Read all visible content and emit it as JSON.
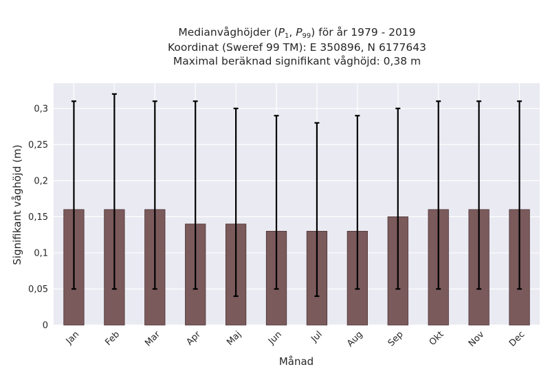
{
  "chart_data": {
    "type": "bar",
    "title_lines": [
      "Medianvåghöjder (P1, P99) för år 1979 - 2019",
      "Koordinat (Sweref 99 TM): E 350896, N 6177643",
      "Maximal beräknad signifikant våghöjd: 0,38 m"
    ],
    "xlabel": "Månad",
    "ylabel": "Signifikant våghöjd (m)",
    "categories": [
      "Jan",
      "Feb",
      "Mar",
      "Apr",
      "Maj",
      "Jun",
      "Jul",
      "Aug",
      "Sep",
      "Okt",
      "Nov",
      "Dec"
    ],
    "series": [
      {
        "values": [
          0.16,
          0.16,
          0.16,
          0.14,
          0.14,
          0.13,
          0.13,
          0.13,
          0.15,
          0.16,
          0.16,
          0.16
        ],
        "error_low": [
          0.05,
          0.05,
          0.05,
          0.05,
          0.04,
          0.05,
          0.04,
          0.05,
          0.05,
          0.05,
          0.05,
          0.05
        ],
        "error_high": [
          0.31,
          0.32,
          0.31,
          0.31,
          0.3,
          0.29,
          0.28,
          0.29,
          0.3,
          0.31,
          0.31,
          0.31
        ]
      }
    ],
    "yticks": [
      0,
      0.05,
      0.1,
      0.15,
      0.2,
      0.25,
      0.3
    ],
    "ytick_labels": [
      "0",
      "0,05",
      "0,1",
      "0,15",
      "0,2",
      "0,25",
      "0,3"
    ],
    "ylim": [
      0,
      0.335
    ],
    "grid": true,
    "colors": {
      "bar": "#7b5a5c",
      "bar_edge": "#4a3435",
      "error": "#000000",
      "plot_bg": "#eaeaf2",
      "grid": "#ffffff"
    }
  }
}
